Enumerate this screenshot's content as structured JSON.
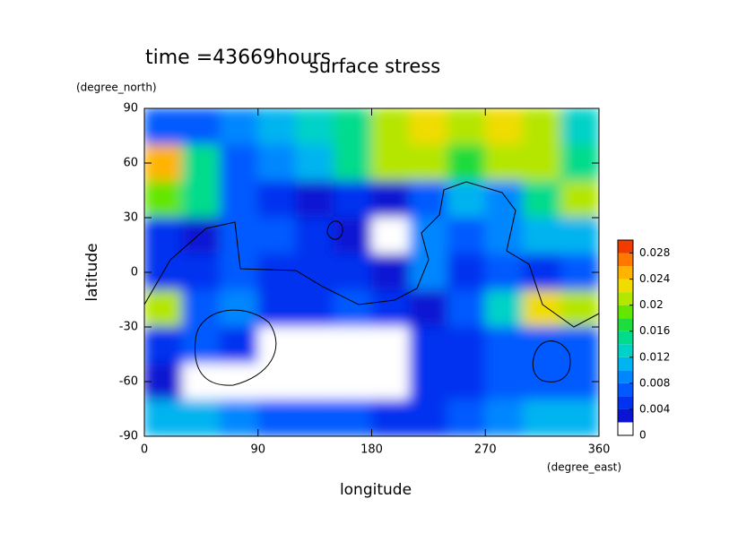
{
  "chart_data": {
    "type": "contour",
    "title": "surface stress",
    "annotation": "time =43669hours",
    "x_label": "longitude",
    "x_units": "(degree_east)",
    "y_label": "latitude",
    "y_units": "(degree_north)",
    "xlim": [
      0,
      360
    ],
    "ylim": [
      -90,
      90
    ],
    "xticks": [
      0,
      90,
      180,
      270,
      360
    ],
    "yticks": [
      -90,
      -60,
      -30,
      0,
      30,
      60,
      90
    ],
    "x": [
      15,
      45,
      75,
      105,
      135,
      165,
      195,
      225,
      255,
      285,
      315,
      345
    ],
    "y": [
      80,
      60,
      40,
      20,
      0,
      -20,
      -40,
      -60,
      -80
    ],
    "z": [
      [
        0.006,
        0.006,
        0.008,
        0.01,
        0.012,
        0.014,
        0.02,
        0.022,
        0.02,
        0.022,
        0.02,
        0.012
      ],
      [
        0.024,
        0.014,
        0.006,
        0.008,
        0.01,
        0.014,
        0.02,
        0.02,
        0.016,
        0.02,
        0.02,
        0.014
      ],
      [
        0.018,
        0.014,
        0.006,
        0.004,
        0.002,
        0.004,
        0.003,
        0.006,
        0.01,
        0.008,
        0.014,
        0.02
      ],
      [
        0.004,
        0.002,
        0.006,
        0.006,
        0.004,
        0.002,
        0.001,
        0.008,
        0.006,
        0.008,
        0.01,
        0.01
      ],
      [
        0.004,
        0.004,
        0.006,
        0.004,
        0.004,
        0.004,
        0.002,
        0.008,
        0.004,
        0.006,
        0.004,
        0.006
      ],
      [
        0.02,
        0.006,
        0.008,
        0.004,
        0.004,
        0.006,
        0.004,
        0.002,
        0.006,
        0.012,
        0.022,
        0.02
      ],
      [
        0.004,
        0.006,
        0.004,
        0.001,
        0.001,
        0.001,
        0.001,
        0.004,
        0.004,
        0.006,
        0.006,
        0.006
      ],
      [
        0.002,
        0.001,
        0.0,
        0.0,
        0.0,
        0.0,
        0.001,
        0.004,
        0.004,
        0.006,
        0.006,
        0.006
      ],
      [
        0.01,
        0.01,
        0.008,
        0.006,
        0.006,
        0.006,
        0.004,
        0.004,
        0.006,
        0.008,
        0.01,
        0.01
      ]
    ],
    "colorbar": {
      "clim": [
        0,
        0.03
      ],
      "ticks": [
        0,
        0.004,
        0.008,
        0.012,
        0.016,
        0.02,
        0.024,
        0.028
      ],
      "colormap": [
        "#ffffff",
        "#0a14d2",
        "#0032f0",
        "#005aff",
        "#0087ff",
        "#00b4f0",
        "#00d2c8",
        "#00dc8c",
        "#1edc3c",
        "#64e600",
        "#b4e600",
        "#f0dc00",
        "#ffb400",
        "#ff7800",
        "#f03c00"
      ]
    }
  }
}
